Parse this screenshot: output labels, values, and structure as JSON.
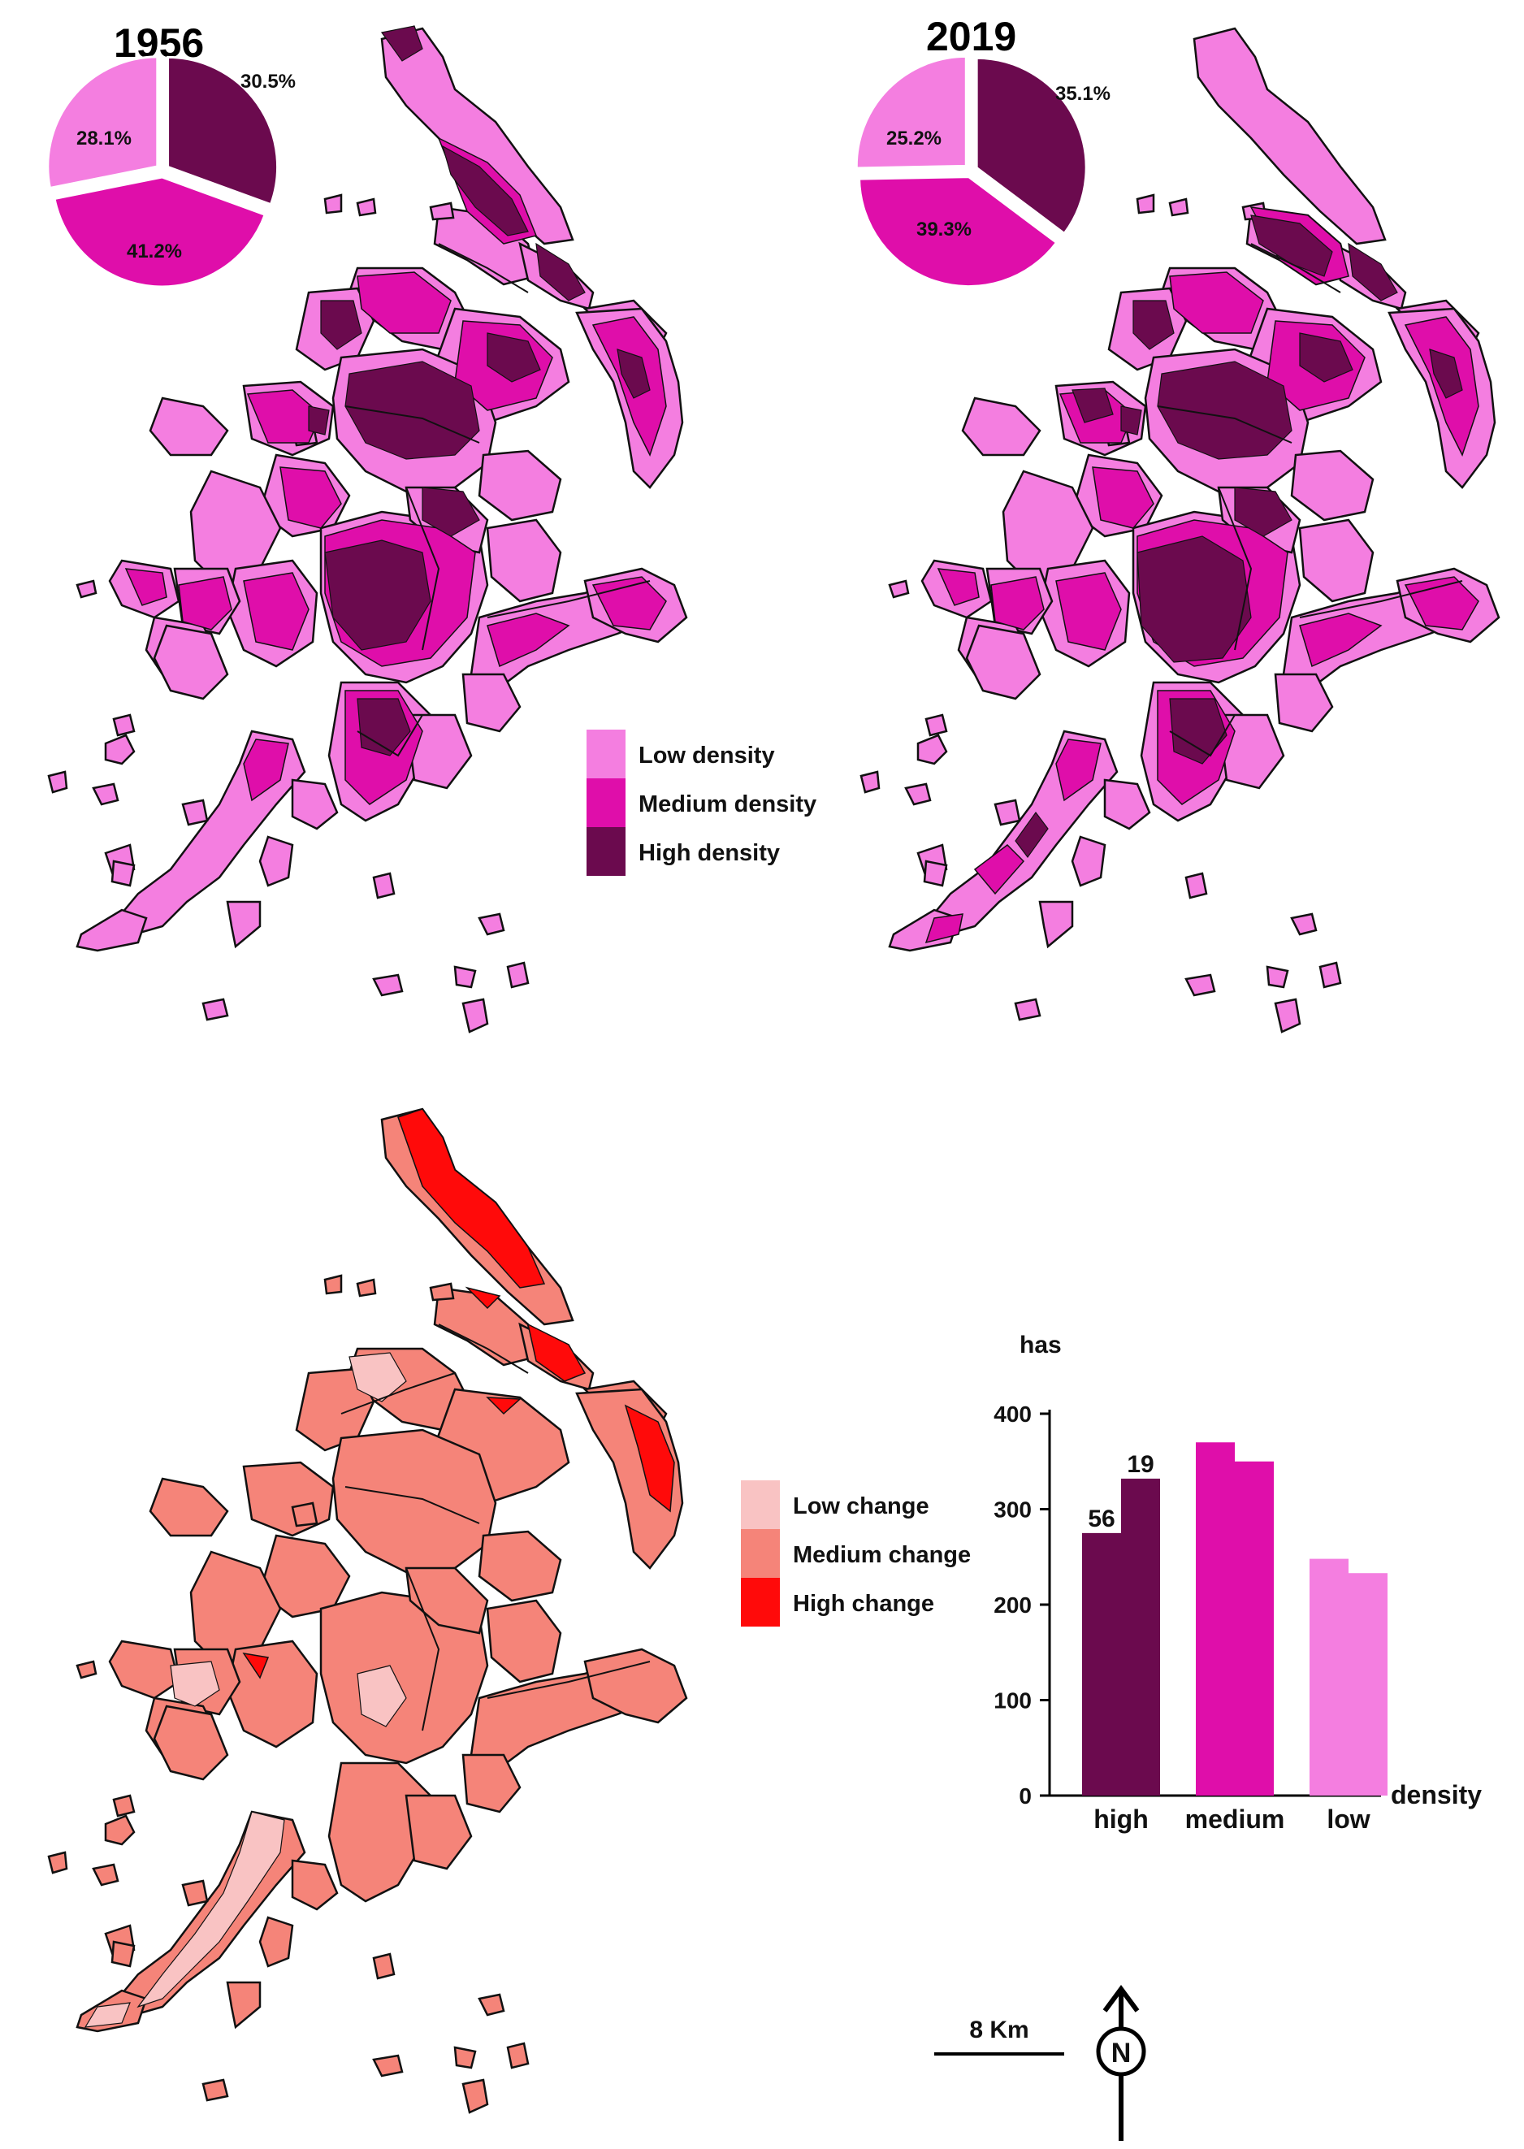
{
  "colors": {
    "low_density": "#f47ee0",
    "medium_density": "#df0eaa",
    "high_density": "#6b0a4e",
    "low_change": "#f9c3c3",
    "medium_change": "#f58479",
    "high_change": "#ff0a0a"
  },
  "map_1956": {
    "year": "1956",
    "pie": {
      "type": "pie",
      "slices": [
        {
          "name": "High density",
          "value": 30.5,
          "label": "30.5%"
        },
        {
          "name": "Medium density",
          "value": 41.2,
          "label": "41.2%"
        },
        {
          "name": "Low density",
          "value": 28.1,
          "label": "28.1%"
        }
      ]
    }
  },
  "map_2019": {
    "year": "2019",
    "pie": {
      "type": "pie",
      "slices": [
        {
          "name": "High density",
          "value": 35.1,
          "label": "35.1%"
        },
        {
          "name": "Medium density",
          "value": 39.3,
          "label": "39.3%"
        },
        {
          "name": "Low density",
          "value": 25.2,
          "label": "25.2%"
        }
      ]
    }
  },
  "density_legend": {
    "items": [
      {
        "label": "Low density",
        "color_key": "low_density"
      },
      {
        "label": "Medium density",
        "color_key": "medium_density"
      },
      {
        "label": "High density",
        "color_key": "high_density"
      }
    ]
  },
  "change_legend": {
    "items": [
      {
        "label": "Low change",
        "color_key": "low_change"
      },
      {
        "label": "Medium change",
        "color_key": "medium_change"
      },
      {
        "label": "High change",
        "color_key": "high_change"
      }
    ]
  },
  "chart_data": {
    "type": "bar",
    "ylabel": "has",
    "xlabel": "density",
    "categories": [
      "high",
      "medium",
      "low"
    ],
    "ylim": [
      0,
      400
    ],
    "yticks": [
      0,
      100,
      200,
      300,
      400
    ],
    "series": [
      {
        "values": [
          275,
          370,
          248
        ]
      },
      {
        "values": [
          332,
          350,
          233
        ]
      }
    ],
    "annotations": [
      "56",
      "19"
    ]
  },
  "scale_bar": {
    "label": "8 Km"
  },
  "north_arrow": {
    "letter": "N",
    "icon": "north-arrow-icon"
  }
}
